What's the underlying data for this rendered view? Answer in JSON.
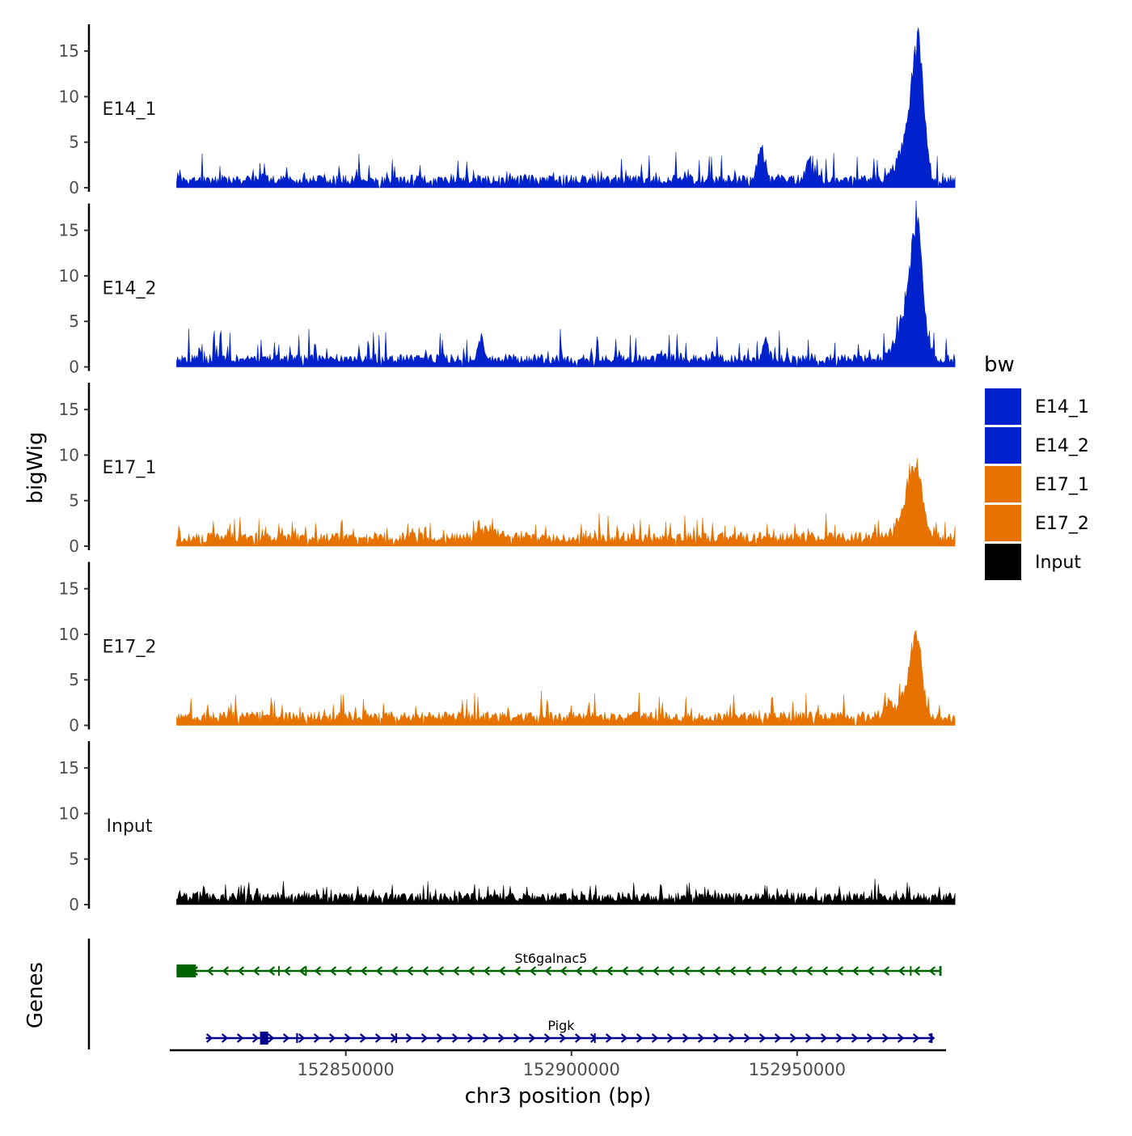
{
  "chart_data": {
    "type": "area",
    "title": "",
    "ylabel": "bigWig",
    "xlabel": "chr3 position (bp)",
    "xlim": [
      152811000,
      152983000
    ],
    "ylim": [
      0,
      17.5
    ],
    "yticks": [
      0,
      5,
      10,
      15
    ],
    "xticks": [
      152850000,
      152900000,
      152950000
    ],
    "xtick_labels": [
      "152850000",
      "152900000",
      "152950000"
    ],
    "data_range": [
      152812500,
      152985000
    ],
    "genes_label": "Genes",
    "legend": {
      "title": "bw",
      "position": "right",
      "entries": [
        {
          "name": "E14_1",
          "color": "#0022CC"
        },
        {
          "name": "E14_2",
          "color": "#0022CC"
        },
        {
          "name": "E17_1",
          "color": "#E87200"
        },
        {
          "name": "E17_2",
          "color": "#E87200"
        },
        {
          "name": "Input",
          "color": "#000000"
        }
      ]
    },
    "tracks": [
      {
        "name": "E14_1",
        "color": "#0022CC",
        "baseline": 1.2,
        "noise": 1.6,
        "seed": 11,
        "peaks": [
          {
            "center": 152976800,
            "width": 1300,
            "height": 14.8
          },
          {
            "center": 152974500,
            "width": 2000,
            "height": 5.0
          },
          {
            "center": 152942000,
            "width": 800,
            "height": 4.2
          },
          {
            "center": 152952500,
            "width": 600,
            "height": 2.5
          }
        ]
      },
      {
        "name": "E14_2",
        "color": "#0022CC",
        "baseline": 1.2,
        "noise": 1.8,
        "seed": 23,
        "peaks": [
          {
            "center": 152976600,
            "width": 1300,
            "height": 15.0
          },
          {
            "center": 152974200,
            "width": 2000,
            "height": 5.2
          },
          {
            "center": 152880000,
            "width": 500,
            "height": 3.0
          },
          {
            "center": 152943000,
            "width": 600,
            "height": 2.5
          }
        ]
      },
      {
        "name": "E17_1",
        "color": "#E87200",
        "baseline": 1.3,
        "noise": 1.3,
        "seed": 37,
        "peaks": [
          {
            "center": 152976400,
            "width": 1400,
            "height": 7.8
          },
          {
            "center": 152974000,
            "width": 2000,
            "height": 3.0
          },
          {
            "center": 152882000,
            "width": 1500,
            "height": 1.2
          }
        ]
      },
      {
        "name": "E17_2",
        "color": "#E87200",
        "baseline": 1.3,
        "noise": 1.5,
        "seed": 53,
        "peaks": [
          {
            "center": 152976500,
            "width": 1100,
            "height": 8.4
          },
          {
            "center": 152975000,
            "width": 2200,
            "height": 3.2
          },
          {
            "center": 152970000,
            "width": 900,
            "height": 1.5
          }
        ]
      },
      {
        "name": "Input",
        "color": "#000000",
        "baseline": 1.1,
        "noise": 1.0,
        "seed": 71,
        "peaks": []
      }
    ],
    "genes": [
      {
        "name": "St6galnac5",
        "strand": "-",
        "color": "#006400",
        "start": 152812500,
        "end": 152982000,
        "exons": [
          [
            152812500,
            152816800
          ],
          [
            152835000,
            152835200
          ],
          [
            152841000,
            152841300
          ],
          [
            152975000,
            152975300
          ],
          [
            152981500,
            152982000
          ]
        ]
      },
      {
        "name": "Pigk",
        "strand": "+",
        "color": "#00008B",
        "start": 152819000,
        "end": 152980000,
        "exons": [
          [
            152831000,
            152832800
          ],
          [
            152839000,
            152839400
          ],
          [
            152861000,
            152861200
          ],
          [
            152905000,
            152905200
          ],
          [
            152979500,
            152980000
          ]
        ]
      }
    ]
  }
}
